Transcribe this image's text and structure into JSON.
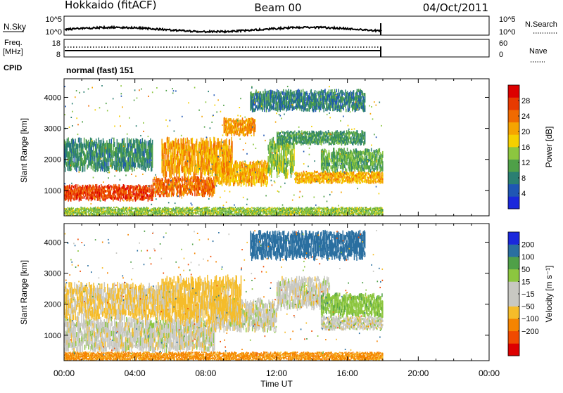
{
  "header": {
    "station": "Hokkaido (fitACF)",
    "beam": "Beam 00",
    "date": "04/Oct/2011"
  },
  "strips": {
    "nsky": {
      "label": "N.Sky",
      "right_label": "N.Search",
      "left_ticks": [
        "10^5",
        "10^0"
      ],
      "right_ticks": [
        "10^5",
        "10^0"
      ]
    },
    "freq": {
      "label_top": "Freq.",
      "label_bottom": "[MHz]",
      "right_label": "Nave",
      "left_ticks": [
        "18",
        "8"
      ],
      "right_ticks": [
        "60",
        "0"
      ]
    },
    "cpid": {
      "label": "CPID",
      "value": "normal (fast) 151"
    }
  },
  "colors": {
    "power": [
      "#1a28dc",
      "#1f56b4",
      "#2a7f72",
      "#4fa048",
      "#8cc63f",
      "#f5d000",
      "#f5a400",
      "#f06a00",
      "#e83a00",
      "#dd0000"
    ],
    "velocity": [
      "#dd0000",
      "#f04a00",
      "#f58400",
      "#f5bc2a",
      "#c8c8c2",
      "#c8c8c2",
      "#8cc63f",
      "#4fa048",
      "#2a6fa0",
      "#1a28dc"
    ],
    "ground_scatter": "#c8c8c2"
  },
  "chart_data": [
    {
      "type": "heatmap",
      "name": "power",
      "title": "",
      "xlabel": "Time UT",
      "ylabel": "Slant Range [km]",
      "xlim_hours": [
        0,
        24
      ],
      "ylim_km": [
        180,
        4600
      ],
      "x_ticks": [
        "00:00",
        "04:00",
        "08:00",
        "12:00",
        "16:00",
        "20:00",
        "00:00"
      ],
      "y_ticks": [
        1000,
        2000,
        3000,
        4000
      ],
      "colorbar": {
        "label": "Power [dB]",
        "ticks": [
          4,
          8,
          12,
          16,
          20,
          24,
          28
        ],
        "range": [
          0,
          32
        ]
      },
      "data_end_hour": 18.0,
      "echo_bands": [
        {
          "t0": 0.0,
          "t1": 5.0,
          "r0": 700,
          "r1": 1150,
          "value": 27
        },
        {
          "t0": 5.0,
          "t1": 8.5,
          "r0": 850,
          "r1": 1400,
          "value": 24
        },
        {
          "t0": 8.5,
          "t1": 11.5,
          "r0": 1200,
          "r1": 1900,
          "value": 20
        },
        {
          "t0": 11.5,
          "t1": 13.0,
          "r0": 1500,
          "r1": 2600,
          "value": 14
        },
        {
          "t0": 13.0,
          "t1": 18.0,
          "r0": 1250,
          "r1": 1600,
          "value": 20
        },
        {
          "t0": 14.5,
          "t1": 18.0,
          "r0": 1650,
          "r1": 2300,
          "value": 12
        },
        {
          "t0": 12.0,
          "t1": 17.0,
          "r0": 2500,
          "r1": 2900,
          "value": 10
        },
        {
          "t0": 5.5,
          "t1": 9.5,
          "r0": 1500,
          "r1": 2600,
          "value": 21
        },
        {
          "t0": 9.0,
          "t1": 10.8,
          "r0": 2800,
          "r1": 3300,
          "value": 22
        },
        {
          "t0": 0.0,
          "t1": 5.0,
          "r0": 1700,
          "r1": 2600,
          "value": 9
        },
        {
          "t0": 10.5,
          "t1": 17.0,
          "r0": 3600,
          "r1": 4200,
          "value": 8
        },
        {
          "t0": 0.0,
          "t1": 18.0,
          "r0": 200,
          "r1": 450,
          "value": 14
        }
      ]
    },
    {
      "type": "heatmap",
      "name": "velocity",
      "title": "",
      "xlabel": "Time UT",
      "ylabel": "Slant Range [km]",
      "xlim_hours": [
        0,
        24
      ],
      "ylim_km": [
        180,
        4600
      ],
      "x_ticks": [
        "00:00",
        "04:00",
        "08:00",
        "12:00",
        "16:00",
        "20:00",
        "00:00"
      ],
      "y_ticks": [
        1000,
        2000,
        3000,
        4000
      ],
      "colorbar": {
        "label": "Velocity [m s⁻¹]",
        "ticks": [
          "200",
          "100",
          "50",
          "15",
          "−15",
          "−50",
          "−100",
          "−200"
        ],
        "range": [
          -250,
          250
        ]
      },
      "data_end_hour": 18.0,
      "echo_bands": [
        {
          "t0": 0.0,
          "t1": 8.5,
          "r0": 550,
          "r1": 1500,
          "value": 0
        },
        {
          "t0": 8.5,
          "t1": 12.0,
          "r0": 1200,
          "r1": 2100,
          "value": 0
        },
        {
          "t0": 12.0,
          "t1": 15.0,
          "r0": 1900,
          "r1": 2800,
          "value": 0
        },
        {
          "t0": 14.5,
          "t1": 18.0,
          "r0": 1200,
          "r1": 1600,
          "value": 0
        },
        {
          "t0": 14.5,
          "t1": 18.0,
          "r0": 1650,
          "r1": 2300,
          "value": 35
        },
        {
          "t0": 5.5,
          "t1": 10.0,
          "r0": 1500,
          "r1": 2800,
          "value": -30
        },
        {
          "t0": 10.5,
          "t1": 17.0,
          "r0": 3500,
          "r1": 4300,
          "value": 160
        },
        {
          "t0": 0.0,
          "t1": 6.0,
          "r0": 1600,
          "r1": 2600,
          "value": -20
        },
        {
          "t0": 0.0,
          "t1": 18.0,
          "r0": 200,
          "r1": 450,
          "value": -60
        }
      ]
    }
  ]
}
